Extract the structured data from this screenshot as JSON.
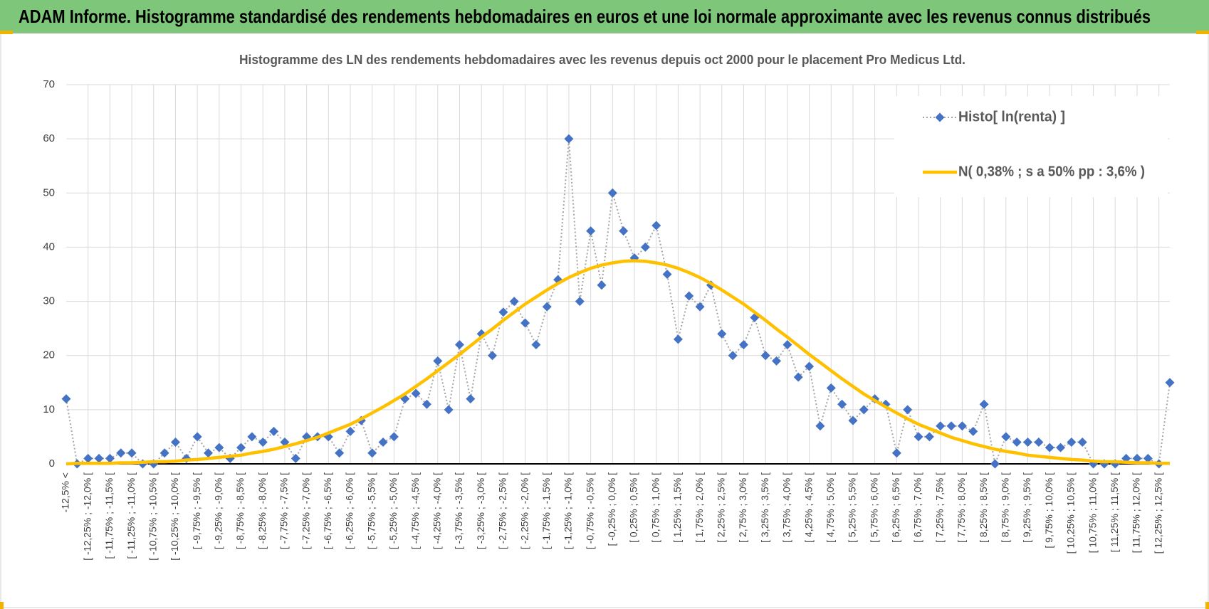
{
  "header": {
    "title": "ADAM Informe. Histogramme standardisé des rendements hebdomadaires en euros et une loi normale approximante avec les revenus connus distribués"
  },
  "chart_data": {
    "type": "line",
    "title": "Histogramme  des LN des rendements hebdomadaires avec les revenus depuis oct 2000  pour le placement Pro Medicus Ltd.",
    "categories": [
      "-12,5% <",
      null,
      "[ -12,25% ; -12,0% [",
      null,
      "[ -11,75% ; -11,5% [",
      null,
      "[ -11,25% ; -11,0% [",
      null,
      "[ -10,75% ; -10,5% [",
      null,
      "[ -10,25% ; -10,0% [",
      null,
      "[ -9,75% ; -9,5% [",
      null,
      "[ -9,25% ; -9,0% [",
      null,
      "[ -8,75% ; -8,5% [",
      null,
      "[ -8,25% ; -8,0% [",
      null,
      "[ -7,75% ; -7,5% [",
      null,
      "[ -7,25% ; -7,0% [",
      null,
      "[ -6,75% ; -6,5% [",
      null,
      "[ -6,25% ; -6,0% [",
      null,
      "[ -5,75% ; -5,5% [",
      null,
      "[ -5,25% ; -5,0% [",
      null,
      "[ -4,75% ; -4,5% [",
      null,
      "[ -4,25% ; -4,0% [",
      null,
      "[ -3,75% ; -3,5% [",
      null,
      "[ -3,25% ; -3,0% [",
      null,
      "[ -2,75% ; -2,5% [",
      null,
      "[ -2,25% ; -2,0% [",
      null,
      "[ -1,75% ; -1,5% [",
      null,
      "[ -1,25% ; -1,0% [",
      null,
      "[ -0,75% ; -0,5% [",
      null,
      "[ -0,25% ; 0,0% [",
      null,
      "[ 0,25% ; 0,5% [",
      null,
      "[ 0,75% ; 1,0% [",
      null,
      "[ 1,25% ; 1,5% [",
      null,
      "[ 1,75% ; 2,0% [",
      null,
      "[ 2,25% ; 2,5% [",
      null,
      "[ 2,75% ; 3,0% [",
      null,
      "[ 3,25% ; 3,5% [",
      null,
      "[ 3,75% ; 4,0% [",
      null,
      "[ 4,25% ; 4,5% [",
      null,
      "[ 4,75% ; 5,0% [",
      null,
      "[ 5,25% ; 5,5% [",
      null,
      "[ 5,75% ; 6,0% [",
      null,
      "[ 6,25% ; 6,5% [",
      null,
      "[ 6,75% ; 7,0% [",
      null,
      "[ 7,25% ; 7,5% [",
      null,
      "[ 7,75% ; 8,0% [",
      null,
      "[ 8,25% ; 8,5% [",
      null,
      "[ 8,75% ; 9,0% [",
      null,
      "[ 9,25% ; 9,5% [",
      null,
      "[ 9,75% ; 10,0% [",
      null,
      "[ 10,25% ; 10,5% [",
      null,
      "[ 10,75% ; 11,0% [",
      null,
      "[ 11,25% ; 11,5% [",
      null,
      "[ 11,75% ; 12,0% [",
      null,
      "[ 12,25% ; 12,5% [",
      null
    ],
    "series": [
      {
        "name": "Histo[ ln(renta) ]",
        "color": "#4472c4",
        "line_color": "#a5a5a5",
        "line_style": "dotted",
        "marker": "diamond",
        "values": [
          12,
          0,
          1,
          1,
          1,
          2,
          2,
          0,
          0,
          2,
          4,
          1,
          5,
          2,
          3,
          1,
          3,
          5,
          4,
          6,
          4,
          1,
          5,
          5,
          5,
          2,
          6,
          8,
          2,
          4,
          5,
          12,
          13,
          11,
          19,
          10,
          22,
          12,
          24,
          20,
          28,
          30,
          26,
          22,
          29,
          34,
          60,
          30,
          43,
          33,
          50,
          43,
          38,
          40,
          44,
          35,
          23,
          31,
          29,
          33,
          24,
          20,
          22,
          27,
          20,
          19,
          22,
          16,
          18,
          7,
          14,
          11,
          8,
          10,
          12,
          11,
          2,
          10,
          5,
          5,
          7,
          7,
          7,
          6,
          11,
          0,
          5,
          4,
          4,
          4,
          3,
          3,
          4,
          4,
          0,
          0,
          0,
          1,
          1,
          1,
          0,
          15
        ]
      },
      {
        "name": "N( 0,38% ; s a 50% pp : 3,6% )",
        "color": "#ffc000",
        "line_style": "solid",
        "marker": "none",
        "values": [
          0,
          0.1,
          0.1,
          0.1,
          0.1,
          0.2,
          0.2,
          0.3,
          0.4,
          0.4,
          0.5,
          0.7,
          0.8,
          1.0,
          1.2,
          1.4,
          1.6,
          2.0,
          2.3,
          2.7,
          3.2,
          3.7,
          4.3,
          4.9,
          5.7,
          6.5,
          7.3,
          8.3,
          9.4,
          10.5,
          11.7,
          12.9,
          14.3,
          15.7,
          17.2,
          18.7,
          20.2,
          21.8,
          23.4,
          24.9,
          26.5,
          28.0,
          29.5,
          30.8,
          32.1,
          33.3,
          34.4,
          35.3,
          36.1,
          36.7,
          37.1,
          37.4,
          37.5,
          37.4,
          37.1,
          36.7,
          36.1,
          35.3,
          34.4,
          33.3,
          32.1,
          30.8,
          29.5,
          28.0,
          26.5,
          24.9,
          23.4,
          21.8,
          20.2,
          18.7,
          17.2,
          15.7,
          14.3,
          12.9,
          11.7,
          10.5,
          9.4,
          8.3,
          7.3,
          6.5,
          5.7,
          4.9,
          4.3,
          3.7,
          3.2,
          2.7,
          2.3,
          2.0,
          1.6,
          1.4,
          1.2,
          1.0,
          0.8,
          0.7,
          0.5,
          0.4,
          0.4,
          0.3,
          0.2,
          0.2,
          0.1,
          0.1
        ]
      }
    ],
    "ylim": [
      0,
      70
    ],
    "yticks": [
      0,
      10,
      20,
      30,
      40,
      50,
      60,
      70
    ],
    "grid": true,
    "legend": "upper right"
  }
}
